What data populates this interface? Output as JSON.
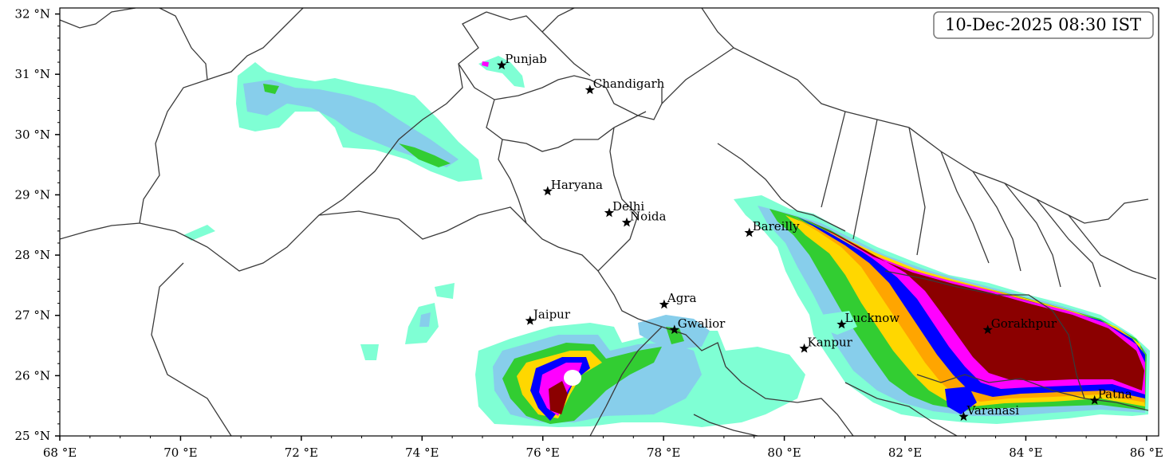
{
  "map": {
    "timestamp": "10-Dec-2025 08:30 IST",
    "lon_range": [
      68,
      86.2
    ],
    "lat_range": [
      25,
      32.1
    ],
    "x_ticks": [
      {
        "value": 68,
        "label": "68 °E"
      },
      {
        "value": 70,
        "label": "70 °E"
      },
      {
        "value": 72,
        "label": "72 °E"
      },
      {
        "value": 74,
        "label": "74 °E"
      },
      {
        "value": 76,
        "label": "76 °E"
      },
      {
        "value": 78,
        "label": "78 °E"
      },
      {
        "value": 80,
        "label": "80 °E"
      },
      {
        "value": 82,
        "label": "82 °E"
      },
      {
        "value": 84,
        "label": "84 °E"
      },
      {
        "value": 86,
        "label": "86 °E"
      }
    ],
    "y_ticks": [
      {
        "value": 25,
        "label": "25 °N"
      },
      {
        "value": 26,
        "label": "26 °N"
      },
      {
        "value": 27,
        "label": "27 °N"
      },
      {
        "value": 28,
        "label": "28 °N"
      },
      {
        "value": 29,
        "label": "29 °N"
      },
      {
        "value": 30,
        "label": "30 °N"
      },
      {
        "value": 31,
        "label": "31 °N"
      },
      {
        "value": 32,
        "label": "32 °N"
      }
    ],
    "colors": {
      "level1": "#7fffd4",
      "level2": "#87ceeb",
      "level3": "#32cd32",
      "level4": "#ffd700",
      "level5": "#ffa500",
      "level6": "#0000ff",
      "level7": "#ff00ff",
      "level8": "#8b0000",
      "borders": "#3a3a3a"
    },
    "cities": [
      {
        "name": "Punjab",
        "lon": 75.32,
        "lat": 31.15
      },
      {
        "name": "Chandigarh",
        "lon": 76.78,
        "lat": 30.74
      },
      {
        "name": "Haryana",
        "lon": 76.08,
        "lat": 29.06
      },
      {
        "name": "Delhi",
        "lon": 77.1,
        "lat": 28.7
      },
      {
        "name": "Noida",
        "lon": 77.39,
        "lat": 28.54
      },
      {
        "name": "Bareilly",
        "lon": 79.42,
        "lat": 28.37
      },
      {
        "name": "Agra",
        "lon": 78.01,
        "lat": 27.18
      },
      {
        "name": "Jaipur",
        "lon": 75.79,
        "lat": 26.91
      },
      {
        "name": "Gwalior",
        "lon": 78.18,
        "lat": 26.76
      },
      {
        "name": "Lucknow",
        "lon": 80.95,
        "lat": 26.85
      },
      {
        "name": "Kanpur",
        "lon": 80.33,
        "lat": 26.45
      },
      {
        "name": "Gorakhpur",
        "lon": 83.37,
        "lat": 26.76
      },
      {
        "name": "Patna",
        "lon": 85.14,
        "lat": 25.59
      },
      {
        "name": "Varanasi",
        "lon": 82.97,
        "lat": 25.32
      }
    ]
  }
}
